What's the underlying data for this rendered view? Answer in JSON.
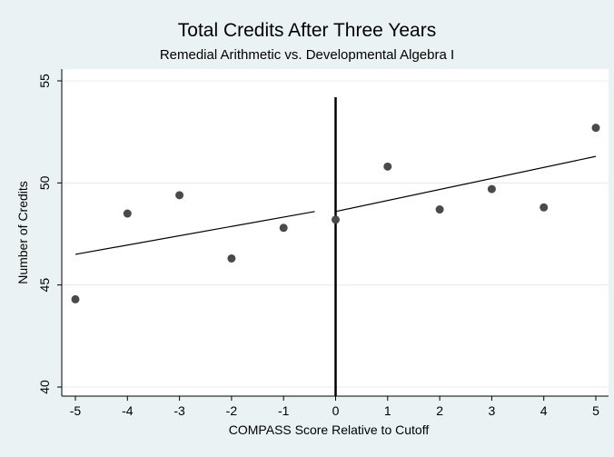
{
  "chart_data": {
    "type": "scatter",
    "title": "Total Credits After Three Years",
    "subtitle": "Remedial Arithmetic vs. Developmental Algebra I",
    "xlabel": "COMPASS Score Relative to Cutoff",
    "ylabel": "Number of Credits",
    "xlim": [
      -5,
      5
    ],
    "ylim": [
      40,
      55
    ],
    "xticks": [
      -5,
      -4,
      -3,
      -2,
      -1,
      0,
      1,
      2,
      3,
      4,
      5
    ],
    "yticks": [
      40,
      45,
      50,
      55
    ],
    "grid": "horizontal",
    "cutoff_line_x": 0,
    "points": [
      {
        "x": -5,
        "y": 44.3
      },
      {
        "x": -4,
        "y": 48.5
      },
      {
        "x": -3,
        "y": 49.4
      },
      {
        "x": -2,
        "y": 46.3
      },
      {
        "x": -1,
        "y": 47.8
      },
      {
        "x": 0,
        "y": 48.2
      },
      {
        "x": 1,
        "y": 50.8
      },
      {
        "x": 2,
        "y": 48.7
      },
      {
        "x": 3,
        "y": 49.7
      },
      {
        "x": 4,
        "y": 48.8
      },
      {
        "x": 5,
        "y": 52.7
      }
    ],
    "fit_lines": [
      {
        "x": [
          -5,
          -0.4
        ],
        "y": [
          46.5,
          48.6
        ],
        "style": "solid"
      },
      {
        "x": [
          0,
          5
        ],
        "y": [
          48.6,
          51.3
        ],
        "style": "solid"
      }
    ],
    "colors": {
      "background": "#eaf2f3",
      "plot_background": "#ffffff",
      "grid": "#e4ecee",
      "marker": "#4a4a4a",
      "line": "#000000"
    }
  }
}
